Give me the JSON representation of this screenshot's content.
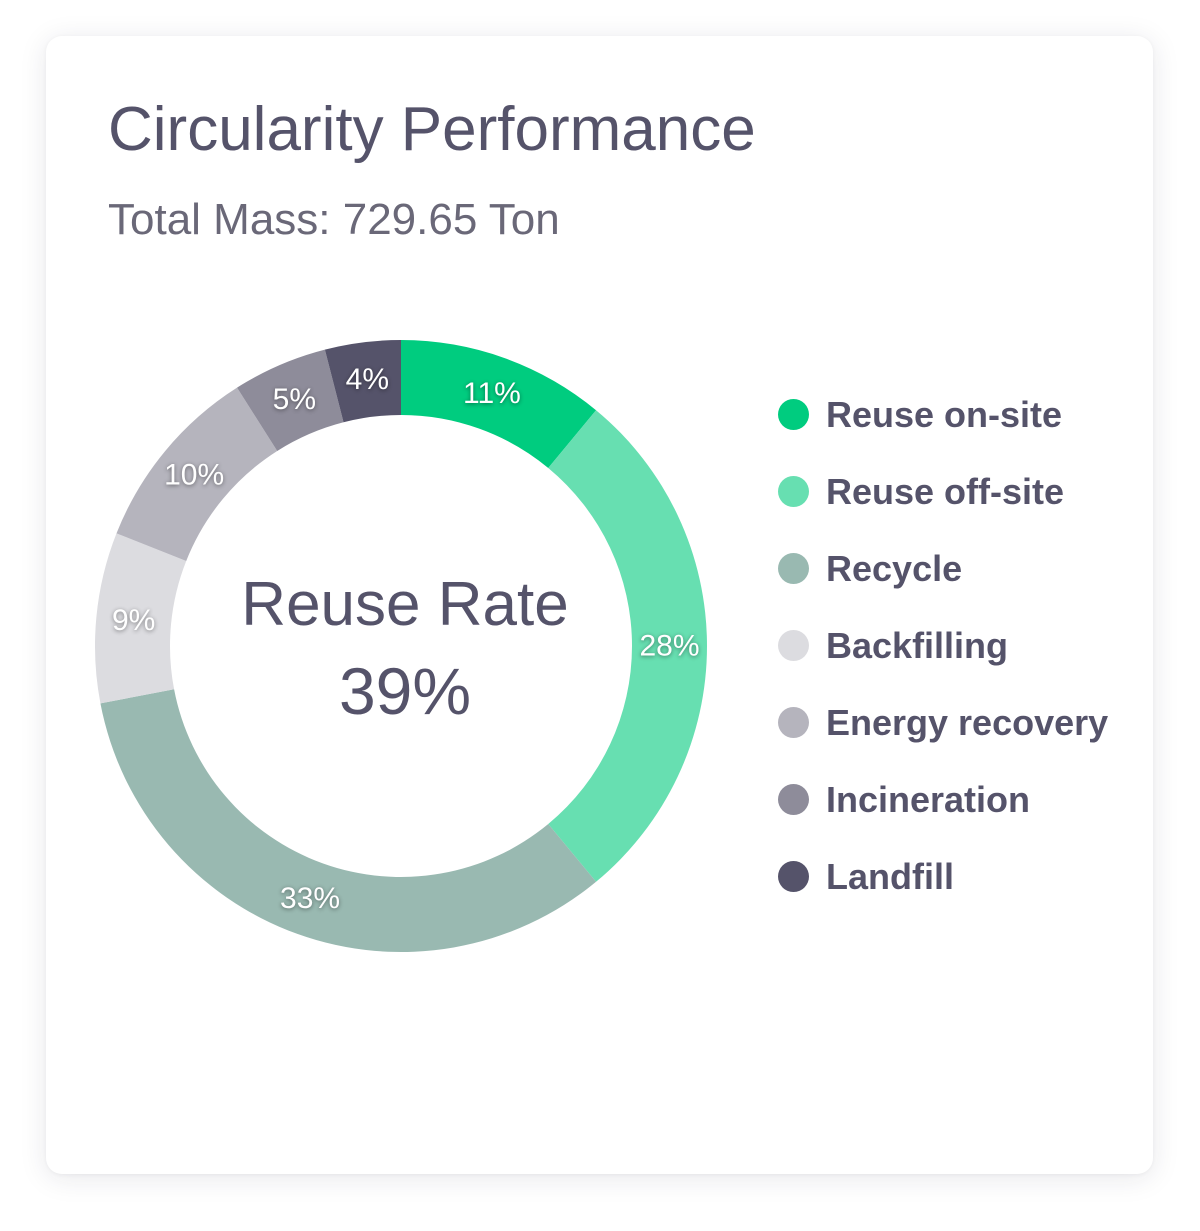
{
  "card": {
    "title": "Circularity Performance",
    "subtitle": "Total Mass: 729.65 Ton"
  },
  "center": {
    "title": "Reuse Rate",
    "value": "39%"
  },
  "chart_data": {
    "type": "pie",
    "donut": true,
    "title": "Circularity Performance",
    "subtitle": "Total Mass: 729.65 Ton",
    "center_text": [
      "Reuse Rate",
      "39%"
    ],
    "legend_position": "right",
    "slices": [
      {
        "name": "Reuse on-site",
        "value": 11,
        "label": "11%",
        "color": "#00cc7f"
      },
      {
        "name": "Reuse off-site",
        "value": 28,
        "label": "28%",
        "color": "#67dfb1"
      },
      {
        "name": "Recycle",
        "value": 33,
        "label": "33%",
        "color": "#99b9b1"
      },
      {
        "name": "Backfilling",
        "value": 9,
        "label": "9%",
        "color": "#dcdce0"
      },
      {
        "name": "Energy recovery",
        "value": 10,
        "label": "10%",
        "color": "#b5b4bd"
      },
      {
        "name": "Incineration",
        "value": 5,
        "label": "5%",
        "color": "#8e8c9a"
      },
      {
        "name": "Landfill",
        "value": 4,
        "label": "4%",
        "color": "#55536a"
      }
    ]
  }
}
